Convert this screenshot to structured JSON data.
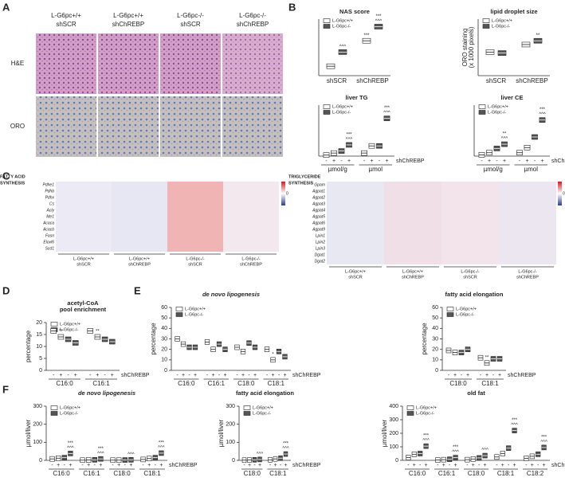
{
  "panels": [
    "A",
    "B",
    "C",
    "D",
    "E",
    "F"
  ],
  "micrographs": {
    "columns": [
      {
        "genotype": "L-G6pc+/+",
        "treatment": "shSCR"
      },
      {
        "genotype": "L-G6pc+/+",
        "treatment": "shChREBP"
      },
      {
        "genotype": "L-G6pc-/-",
        "treatment": "shSCR"
      },
      {
        "genotype": "L-G6pc-/-",
        "treatment": "shChREBP"
      }
    ],
    "rows": [
      "H&E",
      "ORO"
    ]
  },
  "heatmaps": [
    {
      "title": [
        "FATTY ACID",
        "SYNTHESIS"
      ],
      "genes": [
        "Pdhe1",
        "Pdhb",
        "Pdhx",
        "Cs",
        "Acly",
        "Me1",
        "Acaca",
        "Acacb",
        "Fasn",
        "Elovl6",
        "Scd1"
      ],
      "groups": [
        {
          "genotype": "L-G6pc+/+",
          "treatment": "shSCR"
        },
        {
          "genotype": "L-G6pc+/+",
          "treatment": "shChREBP"
        },
        {
          "genotype": "L-G6pc-/-",
          "treatment": "shSCR"
        },
        {
          "genotype": "L-G6pc-/-",
          "treatment": "shChREBP"
        }
      ],
      "scale_label": "0"
    },
    {
      "title": [
        "TRIGLYCERIDE",
        "SYNTHESIS"
      ],
      "genes": [
        "Gpam",
        "Agpat1",
        "Agpat2",
        "Agpat3",
        "Agpat4",
        "Agpat5",
        "Agpat6",
        "Agpat9",
        "Lpin1",
        "Lpin2",
        "Lpin3",
        "Dgat1",
        "Dgat2"
      ],
      "groups": [
        {
          "genotype": "L-G6pc+/+",
          "treatment": "shSCR"
        },
        {
          "genotype": "L-G6pc+/+",
          "treatment": "shChREBP"
        },
        {
          "genotype": "L-G6pc-/-",
          "treatment": "shSCR"
        },
        {
          "genotype": "L-G6pc-/-",
          "treatment": "shChREBP"
        }
      ],
      "scale_label": "0"
    }
  ],
  "box_charts": [
    {
      "title": [
        "NAS score"
      ],
      "groups": [
        "shSCR",
        "shChREBP"
      ],
      "ylim": [
        0,
        6
      ],
      "series": [
        {
          "name": "L-G6pc+/+",
          "color": "#ffffff",
          "values": [
            [
              1.0
            ],
            [
              3.7
            ]
          ]
        },
        {
          "name": "L-G6pc-/-",
          "color": "#555555",
          "values": [
            [
              2.5
            ],
            [
              5.2
            ]
          ]
        }
      ],
      "annotations": [
        {
          "group": 0,
          "series": 1,
          "sign": 0,
          "lines": [
            "^^^"
          ]
        },
        {
          "group": 1,
          "series": 0,
          "sign": 0,
          "lines": [
            "***"
          ]
        },
        {
          "group": 1,
          "series": 1,
          "sign": 0,
          "lines": [
            "***",
            "^^^"
          ]
        }
      ]
    },
    {
      "title": [
        "lipid droplet size"
      ],
      "ylabel": [
        "ORO staining",
        "(x 1000 pixels)"
      ],
      "groups": [
        "shSCR",
        "shChREBP"
      ],
      "ylim": [
        0,
        60
      ],
      "series": [
        {
          "name": "L-G6pc+/+",
          "color": "#ffffff",
          "values": [
            [
              25
            ],
            [
              33
            ]
          ]
        },
        {
          "name": "L-G6pc-/-",
          "color": "#555555",
          "values": [
            [
              24
            ],
            [
              37
            ]
          ]
        }
      ],
      "annotations": [
        {
          "group": 1,
          "series": 1,
          "sign": 0,
          "lines": [
            "**"
          ]
        }
      ]
    },
    {
      "title": [
        "liver TG"
      ],
      "groups": [
        "µmol/g",
        "µmol"
      ],
      "sign_labels": [
        "-",
        "+"
      ],
      "factor_label": "shChREBP",
      "ylim": [
        0,
        250
      ],
      "series": [
        {
          "name": "L-G6pc+/+",
          "color": "#ffffff",
          "values": [
            [
              5,
              15
            ],
            [
              15,
              50
            ]
          ]
        },
        {
          "name": "L-G6pc-/-",
          "color": "#555555",
          "values": [
            [
              25,
              55
            ],
            [
              50,
              185
            ]
          ]
        }
      ],
      "annotations": [
        {
          "group": 0,
          "series": 1,
          "sign": 1,
          "lines": [
            "***",
            "^^^"
          ]
        },
        {
          "group": 1,
          "series": 1,
          "sign": 1,
          "lines": [
            "***",
            "^^^"
          ]
        }
      ]
    },
    {
      "title": [
        "liver CE"
      ],
      "groups": [
        "µmol/g",
        "µmol"
      ],
      "sign_labels": [
        "-",
        "+"
      ],
      "factor_label": "shChREBP",
      "ylim": [
        0,
        12
      ],
      "series": [
        {
          "name": "L-G6pc+/+",
          "color": "#ffffff",
          "values": [
            [
              0.3,
              0.8
            ],
            [
              0.8,
              2
            ]
          ]
        },
        {
          "name": "L-G6pc-/-",
          "color": "#555555",
          "values": [
            [
              1.8,
              2.8
            ],
            [
              4.5,
              8.5
            ]
          ]
        }
      ],
      "annotations": [
        {
          "group": 0,
          "series": 1,
          "sign": 1,
          "lines": [
            "**",
            "^^^"
          ]
        },
        {
          "group": 1,
          "series": 1,
          "sign": 1,
          "lines": [
            "***",
            "^^^"
          ]
        }
      ]
    },
    {
      "title": [
        "acetyl-CoA",
        "pool enrichment"
      ],
      "ylabel": [
        "percentage"
      ],
      "groups": [
        "C16:0",
        "C16:1"
      ],
      "sign_labels": [
        "-",
        "+"
      ],
      "factor_label": "shChREBP",
      "ylim": [
        0,
        20
      ],
      "yticks": [
        0,
        5,
        10,
        15,
        20
      ],
      "series": [
        {
          "name": "L-G6pc+/+",
          "color": "#ffffff",
          "values": [
            [
              16.5,
              14
            ],
            [
              16.5,
              14
            ]
          ]
        },
        {
          "name": "L-G6pc-/-",
          "color": "#555555",
          "values": [
            [
              13,
              11.5
            ],
            [
              13,
              12
            ]
          ]
        }
      ],
      "annotations": [
        {
          "group": 0,
          "series": 0,
          "sign": 1,
          "lines": [
            "**"
          ]
        },
        {
          "group": 1,
          "series": 0,
          "sign": 1,
          "lines": [
            "**"
          ]
        }
      ]
    },
    {
      "title": [
        "de novo lipogenesis"
      ],
      "ylabel": [
        "percentage"
      ],
      "groups": [
        "C16:0",
        "C16:1",
        "C18:0",
        "C18:1"
      ],
      "sign_labels": [
        "-",
        "+"
      ],
      "factor_label": "shChREBP",
      "ylim": [
        0,
        60
      ],
      "yticks": [
        0,
        10,
        20,
        30,
        40,
        50,
        60
      ],
      "series": [
        {
          "name": "L-G6pc+/+",
          "color": "#ffffff",
          "values": [
            [
              30,
              25
            ],
            [
              27,
              20
            ],
            [
              22,
              18
            ],
            [
              20,
              10
            ]
          ]
        },
        {
          "name": "L-G6pc-/-",
          "color": "#555555",
          "values": [
            [
              22,
              22
            ],
            [
              25,
              20
            ],
            [
              26,
              22
            ],
            [
              18,
              13
            ]
          ]
        }
      ],
      "annotations": [
        {
          "group": 3,
          "series": 0,
          "sign": 1,
          "lines": [
            "*"
          ]
        }
      ]
    },
    {
      "title": [
        "fatty acid elongation"
      ],
      "ylabel": [
        "percentage"
      ],
      "groups": [
        "C18:0",
        "C18:1"
      ],
      "sign_labels": [
        "-",
        "+"
      ],
      "factor_label": "shChREBP",
      "ylim": [
        0,
        60
      ],
      "yticks": [
        0,
        10,
        20,
        30,
        40,
        50,
        60
      ],
      "series": [
        {
          "name": "L-G6pc+/+",
          "color": "#ffffff",
          "values": [
            [
              19,
              17
            ],
            [
              12,
              7
            ]
          ]
        },
        {
          "name": "L-G6pc-/-",
          "color": "#555555",
          "values": [
            [
              17,
              20
            ],
            [
              11,
              11
            ]
          ]
        }
      ],
      "annotations": [
        {
          "group": 1,
          "series": 0,
          "sign": 1,
          "lines": [
            "**"
          ]
        }
      ]
    },
    {
      "title": [
        "de novo lipogenesis"
      ],
      "ylabel": [
        "µmol/liver"
      ],
      "groups": [
        "C16:0",
        "C16:1",
        "C18:0",
        "C18:1"
      ],
      "sign_labels": [
        "-",
        "+"
      ],
      "factor_label": "shChREBP",
      "ylim": [
        0,
        300
      ],
      "yticks": [
        0,
        100,
        200,
        300
      ],
      "series": [
        {
          "name": "L-G6pc+/+",
          "color": "#ffffff",
          "values": [
            [
              8,
              12
            ],
            [
              1,
              2
            ],
            [
              1,
              1
            ],
            [
              5,
              10
            ]
          ]
        },
        {
          "name": "L-G6pc-/-",
          "color": "#555555",
          "values": [
            [
              15,
              38
            ],
            [
              3,
              8
            ],
            [
              2,
              3
            ],
            [
              15,
              40
            ]
          ]
        }
      ],
      "annotations": [
        {
          "group": 0,
          "series": 1,
          "sign": 1,
          "lines": [
            "***",
            "^^^"
          ]
        },
        {
          "group": 1,
          "series": 1,
          "sign": 1,
          "lines": [
            "***",
            "^^^"
          ]
        },
        {
          "group": 2,
          "series": 1,
          "sign": 1,
          "lines": [
            "^^^"
          ]
        },
        {
          "group": 3,
          "series": 1,
          "sign": 1,
          "lines": [
            "***",
            "^^^"
          ]
        }
      ]
    },
    {
      "title": [
        "fatty acid elongation"
      ],
      "ylabel": [
        "µmol/liver"
      ],
      "groups": [
        "C18:0",
        "C18:1"
      ],
      "sign_labels": [
        "-",
        "+"
      ],
      "factor_label": "shChREBP",
      "ylim": [
        0,
        300
      ],
      "yticks": [
        0,
        100,
        200,
        300
      ],
      "series": [
        {
          "name": "L-G6pc+/+",
          "color": "#ffffff",
          "values": [
            [
              1,
              2
            ],
            [
              3,
              8
            ]
          ]
        },
        {
          "name": "L-G6pc-/-",
          "color": "#555555",
          "values": [
            [
              3,
              5
            ],
            [
              12,
              35
            ]
          ]
        }
      ],
      "annotations": [
        {
          "group": 0,
          "series": 1,
          "sign": 1,
          "lines": [
            "^^^"
          ]
        },
        {
          "group": 1,
          "series": 1,
          "sign": 1,
          "lines": [
            "***",
            "^^^"
          ]
        }
      ]
    },
    {
      "title": [
        "old fat"
      ],
      "ylabel": [
        "µmol/liver"
      ],
      "groups": [
        "C16:0",
        "C16:1",
        "C18:0",
        "C18:1",
        "C18:2"
      ],
      "sign_labels": [
        "-",
        "+"
      ],
      "factor_label": "shChREBP",
      "ylim": [
        0,
        400
      ],
      "yticks": [
        0,
        100,
        200,
        300,
        400
      ],
      "series": [
        {
          "name": "L-G6pc+/+",
          "color": "#ffffff",
          "values": [
            [
              20,
              45
            ],
            [
              2,
              5
            ],
            [
              5,
              10
            ],
            [
              25,
              50
            ],
            [
              15,
              30
            ]
          ]
        },
        {
          "name": "L-G6pc-/-",
          "color": "#555555",
          "values": [
            [
              50,
              105
            ],
            [
              8,
              20
            ],
            [
              18,
              35
            ],
            [
              90,
              220
            ],
            [
              45,
              95
            ]
          ]
        }
      ],
      "annotations": [
        {
          "group": 0,
          "series": 1,
          "sign": 1,
          "lines": [
            "***",
            "^^^"
          ]
        },
        {
          "group": 1,
          "series": 1,
          "sign": 1,
          "lines": [
            "***",
            "^^^"
          ]
        },
        {
          "group": 2,
          "series": 1,
          "sign": 1,
          "lines": [
            "^^^"
          ]
        },
        {
          "group": 3,
          "series": 1,
          "sign": 1,
          "lines": [
            "***",
            "^^^"
          ]
        },
        {
          "group": 4,
          "series": 1,
          "sign": 1,
          "lines": [
            "***",
            "^^^"
          ]
        }
      ]
    }
  ]
}
